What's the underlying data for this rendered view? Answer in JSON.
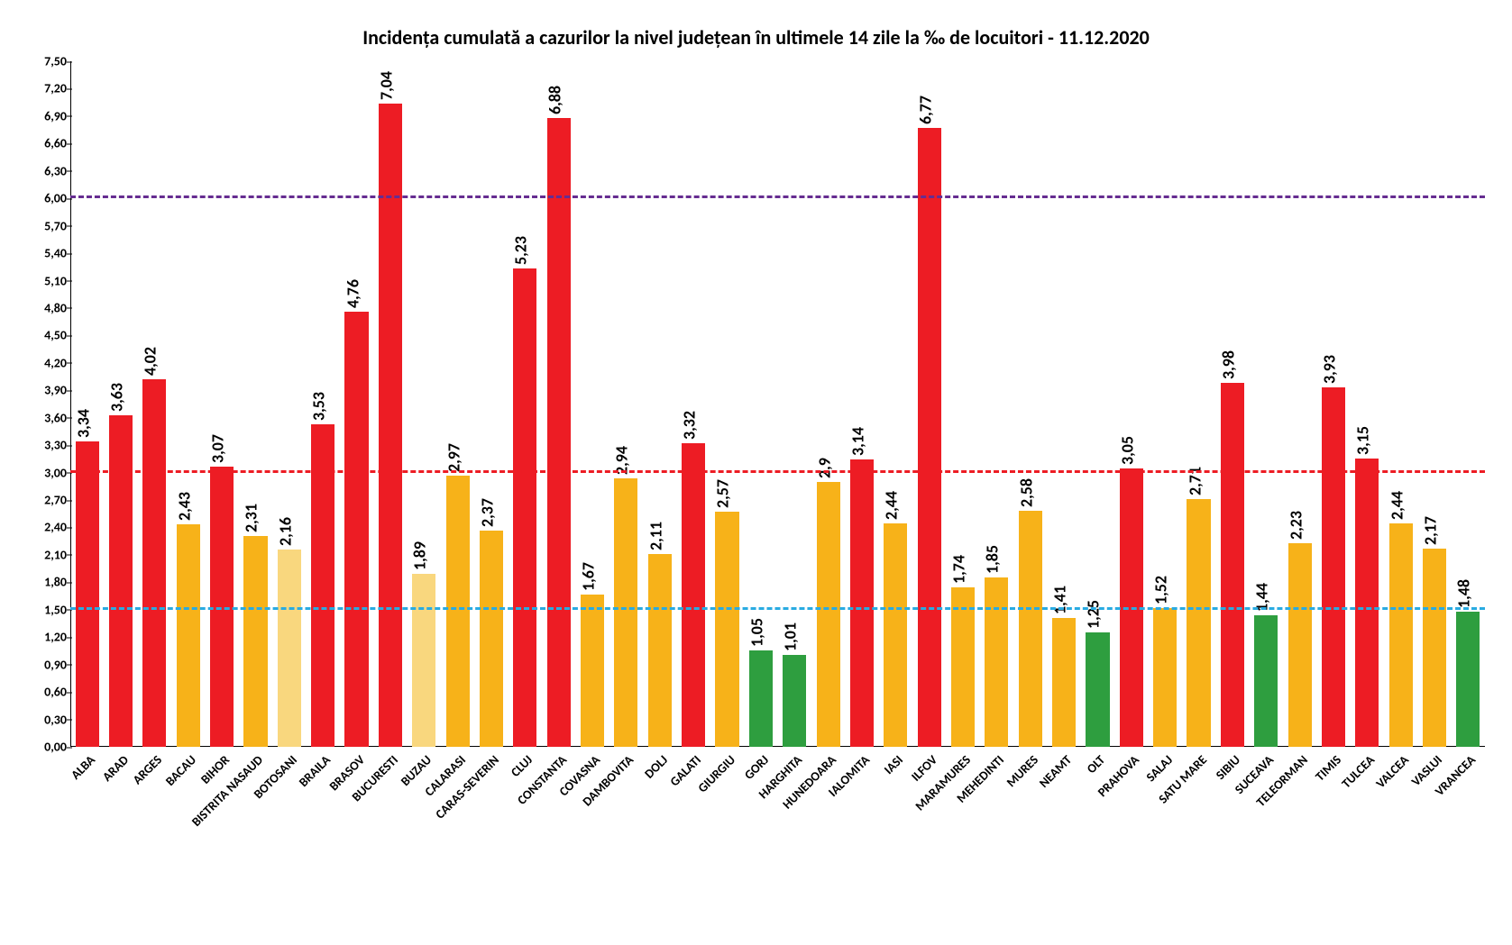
{
  "chart": {
    "type": "bar",
    "title": "Incidența cumulată a cazurilor la nivel județean în ultimele 14 zile la ‰ de locuitori - 11.12.2020",
    "title_fontsize": 22,
    "background_color": "#ffffff",
    "ylim": [
      0,
      7.5
    ],
    "ytick_step": 0.3,
    "ytick_labels": [
      "0,00",
      "0,30",
      "0,60",
      "0,90",
      "1,20",
      "1,50",
      "1,80",
      "2,10",
      "2,40",
      "2,70",
      "3,00",
      "3,30",
      "3,60",
      "3,90",
      "4,20",
      "4,50",
      "4,80",
      "5,10",
      "5,40",
      "5,70",
      "6,00",
      "6,30",
      "6,60",
      "6,90",
      "7,20",
      "7,50"
    ],
    "ytick_fontsize": 14,
    "axis_color": "#000000",
    "value_label_fontsize": 18,
    "x_label_fontsize": 14,
    "bar_width": 0.7,
    "thresholds": [
      {
        "value": 1.5,
        "color": "#29abe2",
        "dash": "12,8"
      },
      {
        "value": 3.0,
        "color": "#ed1c24",
        "dash": "12,8"
      },
      {
        "value": 6.0,
        "color": "#662d91",
        "dash": "12,8"
      }
    ],
    "colors": {
      "red": "#ed1c24",
      "yellow": "#f7b219",
      "pale_yellow": "#f9d77e",
      "green": "#2e9e3f"
    },
    "items": [
      {
        "label": "ALBA",
        "value": 3.34,
        "value_text": "3,34",
        "color": "red"
      },
      {
        "label": "ARAD",
        "value": 3.63,
        "value_text": "3,63",
        "color": "red"
      },
      {
        "label": "ARGES",
        "value": 4.02,
        "value_text": "4,02",
        "color": "red"
      },
      {
        "label": "BACAU",
        "value": 2.43,
        "value_text": "2,43",
        "color": "yellow"
      },
      {
        "label": "BIHOR",
        "value": 3.07,
        "value_text": "3,07",
        "color": "red"
      },
      {
        "label": "BISTRITA NASAUD",
        "value": 2.31,
        "value_text": "2,31",
        "color": "yellow"
      },
      {
        "label": "BOTOSANI",
        "value": 2.16,
        "value_text": "2,16",
        "color": "pale_yellow"
      },
      {
        "label": "BRAILA",
        "value": 3.53,
        "value_text": "3,53",
        "color": "red"
      },
      {
        "label": "BRASOV",
        "value": 4.76,
        "value_text": "4,76",
        "color": "red"
      },
      {
        "label": "BUCURESTI",
        "value": 7.04,
        "value_text": "7,04",
        "color": "red"
      },
      {
        "label": "BUZAU",
        "value": 1.89,
        "value_text": "1,89",
        "color": "pale_yellow"
      },
      {
        "label": "CALARASI",
        "value": 2.97,
        "value_text": "2,97",
        "color": "yellow"
      },
      {
        "label": "CARAS-SEVERIN",
        "value": 2.37,
        "value_text": "2,37",
        "color": "yellow"
      },
      {
        "label": "CLUJ",
        "value": 5.23,
        "value_text": "5,23",
        "color": "red"
      },
      {
        "label": "CONSTANTA",
        "value": 6.88,
        "value_text": "6,88",
        "color": "red"
      },
      {
        "label": "COVASNA",
        "value": 1.67,
        "value_text": "1,67",
        "color": "yellow"
      },
      {
        "label": "DAMBOVITA",
        "value": 2.94,
        "value_text": "2,94",
        "color": "yellow"
      },
      {
        "label": "DOLJ",
        "value": 2.11,
        "value_text": "2,11",
        "color": "yellow"
      },
      {
        "label": "GALATI",
        "value": 3.32,
        "value_text": "3,32",
        "color": "red"
      },
      {
        "label": "GIURGIU",
        "value": 2.57,
        "value_text": "2,57",
        "color": "yellow"
      },
      {
        "label": "GORJ",
        "value": 1.05,
        "value_text": "1,05",
        "color": "green"
      },
      {
        "label": "HARGHITA",
        "value": 1.01,
        "value_text": "1,01",
        "color": "green"
      },
      {
        "label": "HUNEDOARA",
        "value": 2.9,
        "value_text": "2,9",
        "color": "yellow"
      },
      {
        "label": "IALOMITA",
        "value": 3.14,
        "value_text": "3,14",
        "color": "red"
      },
      {
        "label": "IASI",
        "value": 2.44,
        "value_text": "2,44",
        "color": "yellow"
      },
      {
        "label": "ILFOV",
        "value": 6.77,
        "value_text": "6,77",
        "color": "red"
      },
      {
        "label": "MARAMURES",
        "value": 1.74,
        "value_text": "1,74",
        "color": "yellow"
      },
      {
        "label": "MEHEDINTI",
        "value": 1.85,
        "value_text": "1,85",
        "color": "yellow"
      },
      {
        "label": "MURES",
        "value": 2.58,
        "value_text": "2,58",
        "color": "yellow"
      },
      {
        "label": "NEAMT",
        "value": 1.41,
        "value_text": "1,41",
        "color": "yellow"
      },
      {
        "label": "OLT",
        "value": 1.25,
        "value_text": "1,25",
        "color": "green"
      },
      {
        "label": "PRAHOVA",
        "value": 3.05,
        "value_text": "3,05",
        "color": "red"
      },
      {
        "label": "SALAJ",
        "value": 1.52,
        "value_text": "1,52",
        "color": "yellow"
      },
      {
        "label": "SATU MARE",
        "value": 2.71,
        "value_text": "2,71",
        "color": "yellow"
      },
      {
        "label": "SIBIU",
        "value": 3.98,
        "value_text": "3,98",
        "color": "red"
      },
      {
        "label": "SUCEAVA",
        "value": 1.44,
        "value_text": "1,44",
        "color": "green"
      },
      {
        "label": "TELEORMAN",
        "value": 2.23,
        "value_text": "2,23",
        "color": "yellow"
      },
      {
        "label": "TIMIS",
        "value": 3.93,
        "value_text": "3,93",
        "color": "red"
      },
      {
        "label": "TULCEA",
        "value": 3.15,
        "value_text": "3,15",
        "color": "red"
      },
      {
        "label": "VALCEA",
        "value": 2.44,
        "value_text": "2,44",
        "color": "yellow"
      },
      {
        "label": "VASLUI",
        "value": 2.17,
        "value_text": "2,17",
        "color": "yellow"
      },
      {
        "label": "VRANCEA",
        "value": 1.48,
        "value_text": "1,48",
        "color": "green"
      }
    ]
  }
}
